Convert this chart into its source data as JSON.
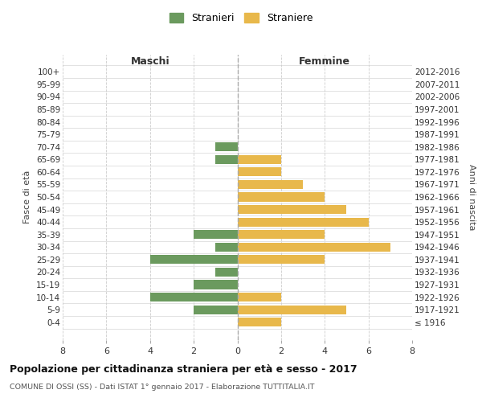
{
  "age_groups": [
    "100+",
    "95-99",
    "90-94",
    "85-89",
    "80-84",
    "75-79",
    "70-74",
    "65-69",
    "60-64",
    "55-59",
    "50-54",
    "45-49",
    "40-44",
    "35-39",
    "30-34",
    "25-29",
    "20-24",
    "15-19",
    "10-14",
    "5-9",
    "0-4"
  ],
  "birth_years": [
    "≤ 1916",
    "1917-1921",
    "1922-1926",
    "1927-1931",
    "1932-1936",
    "1937-1941",
    "1942-1946",
    "1947-1951",
    "1952-1956",
    "1957-1961",
    "1962-1966",
    "1967-1971",
    "1972-1976",
    "1977-1981",
    "1982-1986",
    "1987-1991",
    "1992-1996",
    "1997-2001",
    "2002-2006",
    "2007-2011",
    "2012-2016"
  ],
  "maschi": [
    0,
    0,
    0,
    0,
    0,
    0,
    1,
    1,
    0,
    0,
    0,
    0,
    0,
    2,
    1,
    4,
    1,
    2,
    4,
    2,
    0
  ],
  "femmine": [
    0,
    0,
    0,
    0,
    0,
    0,
    0,
    2,
    2,
    3,
    4,
    5,
    6,
    4,
    7,
    4,
    0,
    0,
    2,
    5,
    2
  ],
  "color_maschi": "#6b9a5e",
  "color_femmine": "#e8b84b",
  "title": "Popolazione per cittadinanza straniera per età e sesso - 2017",
  "subtitle": "COMUNE DI OSSI (SS) - Dati ISTAT 1° gennaio 2017 - Elaborazione TUTTITALIA.IT",
  "xlabel_left": "Maschi",
  "xlabel_right": "Femmine",
  "ylabel_left": "Fasce di età",
  "ylabel_right": "Anni di nascita",
  "legend_maschi": "Stranieri",
  "legend_femmine": "Straniere",
  "xlim": 8,
  "background_color": "#ffffff",
  "grid_color": "#cccccc"
}
